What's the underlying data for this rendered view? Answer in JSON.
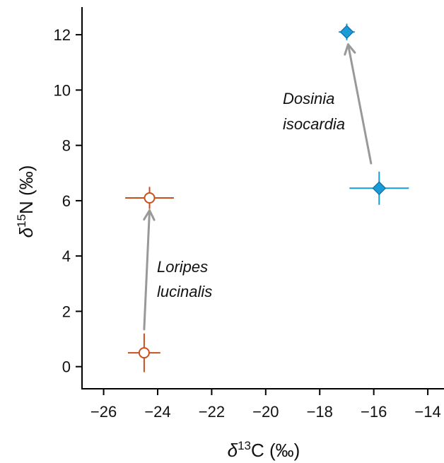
{
  "chart_data": {
    "type": "scatter",
    "xlim": [
      -26.8,
      -13.4
    ],
    "ylim": [
      -0.8,
      13.0
    ],
    "x_ticks": [
      -26,
      -24,
      -22,
      -20,
      -18,
      -16,
      -14
    ],
    "y_ticks": [
      0,
      2,
      4,
      6,
      8,
      10,
      12
    ],
    "x_tick_labels": [
      "−26",
      "−24",
      "−22",
      "−20",
      "−18",
      "−16",
      "−14"
    ],
    "y_tick_labels": [
      "0",
      "2",
      "4",
      "6",
      "8",
      "10",
      "12"
    ],
    "xlabel": {
      "prefix": "δ",
      "sup": "13",
      "suffix": "C (‰)"
    },
    "ylabel": {
      "prefix": "δ",
      "sup": "15",
      "suffix": "N (‰)"
    },
    "grid": false,
    "series": [
      {
        "marker": "circle-open",
        "color": "#c8501e",
        "points": [
          {
            "x": -24.5,
            "y": 0.5,
            "xerr": 0.6,
            "yerr": 0.7
          },
          {
            "x": -24.3,
            "y": 6.1,
            "xerr": 0.9,
            "yerr": 0.4
          }
        ],
        "annotation": {
          "line1": "Loripes",
          "line2": "lucinalis"
        }
      },
      {
        "marker": "diamond-filled",
        "color": "#1a9ad6",
        "points": [
          {
            "x": -15.8,
            "y": 6.45,
            "xerr": 1.1,
            "yerr": 0.6
          },
          {
            "x": -17.0,
            "y": 12.1,
            "xerr": 0.3,
            "yerr": 0.3
          }
        ],
        "annotation": {
          "line1": "Dosinia",
          "line2": "isocardia"
        }
      }
    ],
    "arrows": [
      {
        "from": {
          "x": -24.5,
          "y": 1.35
        },
        "to": {
          "x": -24.3,
          "y": 5.65
        }
      },
      {
        "from": {
          "x": -16.1,
          "y": 7.35
        },
        "to": {
          "x": -16.95,
          "y": 11.65
        }
      }
    ],
    "arrow_color": "#999999"
  }
}
